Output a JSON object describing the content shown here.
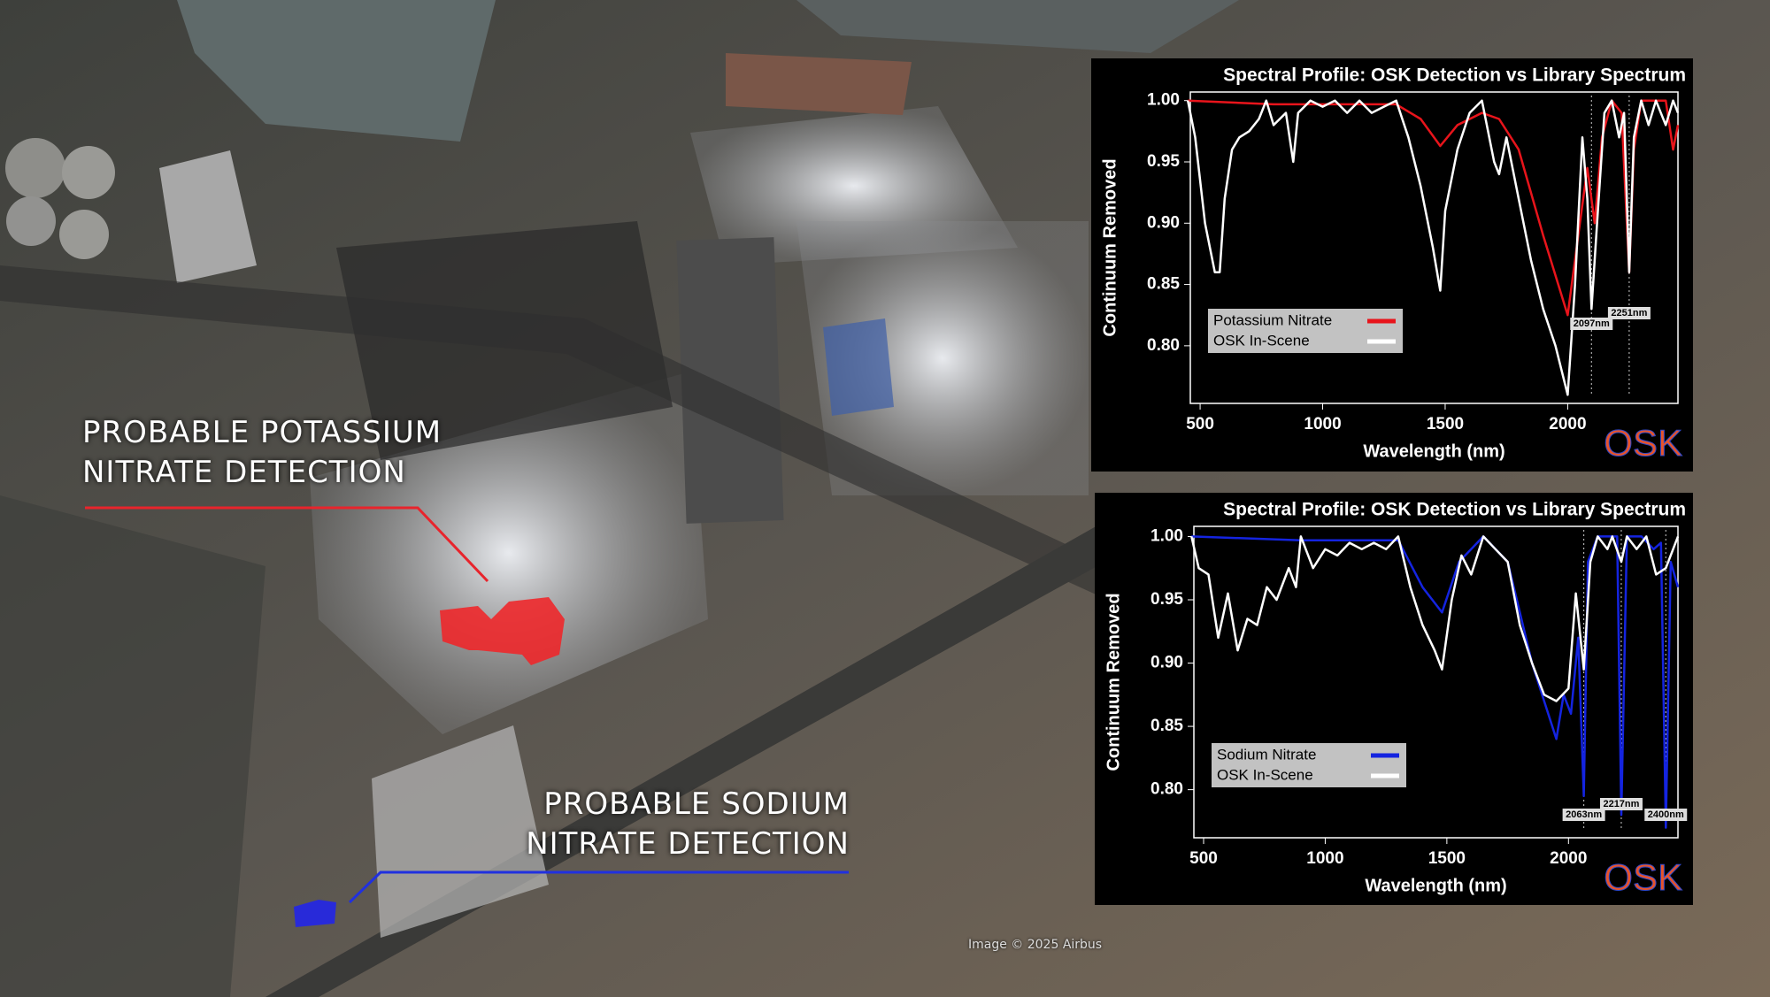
{
  "map_annotations": [
    {
      "lines": [
        "PROBABLE POTASSIUM",
        "NITRATE DETECTION"
      ]
    },
    {
      "lines": [
        "PROBABLE SODIUM",
        "NITRATE DETECTION"
      ]
    }
  ],
  "credit": "Image © 2025 Airbus",
  "chart_data": [
    {
      "type": "line",
      "title": "Spectral Profile: OSK Detection vs Library Spectrum",
      "logo": "OSK",
      "x_label": "Wavelength (nm)",
      "y_label": "Continuum Removed",
      "xlim": [
        460,
        2450
      ],
      "ylim": [
        0.753,
        1.007
      ],
      "xticks": [
        500,
        1000,
        1500,
        2000
      ],
      "yticks": [
        {
          "value": 0.8,
          "label": "0.80"
        },
        {
          "value": 0.85,
          "label": "0.85"
        },
        {
          "value": 0.9,
          "label": "0.90"
        },
        {
          "value": 0.95,
          "label": "0.95"
        },
        {
          "value": 1.0,
          "label": "1.00"
        }
      ],
      "series": [
        {
          "name": "Potassium Nitrate",
          "color": "#e8141b",
          "x": [
            450,
            800,
            1300,
            1400,
            1480,
            1550,
            1650,
            1720,
            1800,
            1900,
            2000,
            2050,
            2080,
            2110,
            2140,
            2180,
            2220,
            2251,
            2270,
            2300,
            2400,
            2430,
            2450
          ],
          "values": [
            1.0,
            0.997,
            0.997,
            0.985,
            0.963,
            0.98,
            0.99,
            0.985,
            0.96,
            0.89,
            0.825,
            0.9,
            0.945,
            0.9,
            0.97,
            1.0,
            0.99,
            0.86,
            0.96,
            1.0,
            1.0,
            0.96,
            0.98
          ]
        },
        {
          "name": "OSK In-Scene",
          "color": "#ffffff",
          "x": [
            450,
            480,
            520,
            560,
            580,
            600,
            630,
            660,
            700,
            740,
            770,
            800,
            850,
            880,
            900,
            950,
            1000,
            1050,
            1100,
            1150,
            1200,
            1250,
            1300,
            1350,
            1400,
            1450,
            1480,
            1500,
            1550,
            1600,
            1650,
            1700,
            1720,
            1750,
            1800,
            1850,
            1900,
            1950,
            2000,
            2030,
            2060,
            2080,
            2097,
            2120,
            2150,
            2180,
            2210,
            2230,
            2251,
            2270,
            2300,
            2330,
            2360,
            2400,
            2430,
            2450
          ],
          "values": [
            1.0,
            0.97,
            0.9,
            0.86,
            0.86,
            0.92,
            0.96,
            0.97,
            0.975,
            0.985,
            1.0,
            0.98,
            0.99,
            0.95,
            0.99,
            1.0,
            0.995,
            1.0,
            0.99,
            1.0,
            0.99,
            0.995,
            1.0,
            0.97,
            0.93,
            0.88,
            0.845,
            0.91,
            0.96,
            0.99,
            1.0,
            0.95,
            0.94,
            0.97,
            0.92,
            0.87,
            0.83,
            0.8,
            0.76,
            0.85,
            0.97,
            0.92,
            0.83,
            0.9,
            0.99,
            1.0,
            0.97,
            0.99,
            0.86,
            0.97,
            1.0,
            0.98,
            1.0,
            0.98,
            1.0,
            0.99
          ]
        }
      ],
      "annotations": [
        {
          "text": "2097nm",
          "x": 2097
        },
        {
          "text": "2251nm",
          "x": 2251
        }
      ]
    },
    {
      "type": "line",
      "title": "Spectral Profile: OSK Detection vs Library Spectrum",
      "logo": "OSK",
      "x_label": "Wavelength (nm)",
      "y_label": "Continuum Removed",
      "xlim": [
        460,
        2450
      ],
      "ylim": [
        0.762,
        1.008
      ],
      "xticks": [
        500,
        1000,
        1500,
        2000
      ],
      "yticks": [
        {
          "value": 0.8,
          "label": "0.80"
        },
        {
          "value": 0.85,
          "label": "0.85"
        },
        {
          "value": 0.9,
          "label": "0.90"
        },
        {
          "value": 0.95,
          "label": "0.95"
        },
        {
          "value": 1.0,
          "label": "1.00"
        }
      ],
      "series": [
        {
          "name": "Sodium Nitrate",
          "color": "#1424e0",
          "x": [
            450,
            900,
            1300,
            1400,
            1480,
            1550,
            1650,
            1750,
            1850,
            1900,
            1950,
            1980,
            2010,
            2040,
            2063,
            2080,
            2120,
            2200,
            2217,
            2240,
            2300,
            2350,
            2380,
            2400,
            2420,
            2450
          ],
          "values": [
            1.0,
            0.997,
            0.997,
            0.96,
            0.94,
            0.98,
            1.0,
            0.98,
            0.9,
            0.87,
            0.84,
            0.875,
            0.86,
            0.92,
            0.795,
            0.98,
            1.0,
            1.0,
            0.78,
            1.0,
            1.0,
            0.99,
            0.995,
            0.77,
            0.98,
            0.96
          ]
        },
        {
          "name": "OSK In-Scene",
          "color": "#ffffff",
          "x": [
            450,
            480,
            520,
            560,
            600,
            640,
            680,
            720,
            760,
            800,
            850,
            880,
            900,
            950,
            1000,
            1050,
            1100,
            1150,
            1200,
            1250,
            1300,
            1350,
            1400,
            1450,
            1480,
            1520,
            1560,
            1600,
            1650,
            1700,
            1750,
            1800,
            1850,
            1900,
            1950,
            2000,
            2030,
            2063,
            2090,
            2120,
            2160,
            2180,
            2217,
            2240,
            2280,
            2320,
            2360,
            2400,
            2430,
            2450
          ],
          "values": [
            1.0,
            0.975,
            0.97,
            0.92,
            0.955,
            0.91,
            0.935,
            0.93,
            0.96,
            0.95,
            0.975,
            0.96,
            1.0,
            0.975,
            0.99,
            0.985,
            0.995,
            0.99,
            0.995,
            0.99,
            1.0,
            0.96,
            0.93,
            0.91,
            0.895,
            0.95,
            0.985,
            0.97,
            1.0,
            0.99,
            0.98,
            0.93,
            0.9,
            0.875,
            0.87,
            0.88,
            0.955,
            0.895,
            0.98,
            1.0,
            0.99,
            1.0,
            0.98,
            1.0,
            0.99,
            1.0,
            0.97,
            0.975,
            0.99,
            1.0
          ]
        }
      ],
      "annotations": [
        {
          "text": "2217nm",
          "x": 2217
        },
        {
          "text": "2063nm",
          "x": 2063
        },
        {
          "text": "2400nm",
          "x": 2400
        }
      ]
    }
  ]
}
